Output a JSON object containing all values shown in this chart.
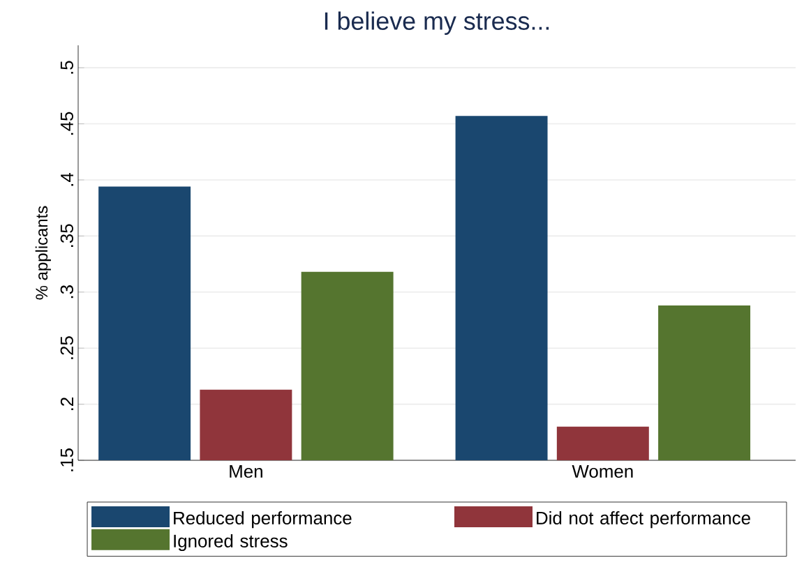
{
  "chart_data": {
    "type": "bar",
    "title": "I believe my stress...",
    "ylabel": "% applicants",
    "categories": [
      "Men",
      "Women"
    ],
    "series": [
      {
        "name": "Reduced performance",
        "color": "#1a476f",
        "values": [
          0.394,
          0.457
        ]
      },
      {
        "name": "Did not affect performance",
        "color": "#90353b",
        "values": [
          0.213,
          0.18
        ]
      },
      {
        "name": "Ignored stress",
        "color": "#55752f",
        "values": [
          0.318,
          0.288
        ]
      }
    ],
    "ylim": [
      0.15,
      0.52
    ],
    "yticks": [
      {
        "value": 0.15,
        "label": ".15"
      },
      {
        "value": 0.2,
        "label": ".2"
      },
      {
        "value": 0.25,
        "label": ".25"
      },
      {
        "value": 0.3,
        "label": ".3"
      },
      {
        "value": 0.35,
        "label": ".35"
      },
      {
        "value": 0.4,
        "label": ".4"
      },
      {
        "value": 0.45,
        "label": ".45"
      },
      {
        "value": 0.5,
        "label": ".5"
      }
    ],
    "grid": "y",
    "legend": "bottom"
  }
}
